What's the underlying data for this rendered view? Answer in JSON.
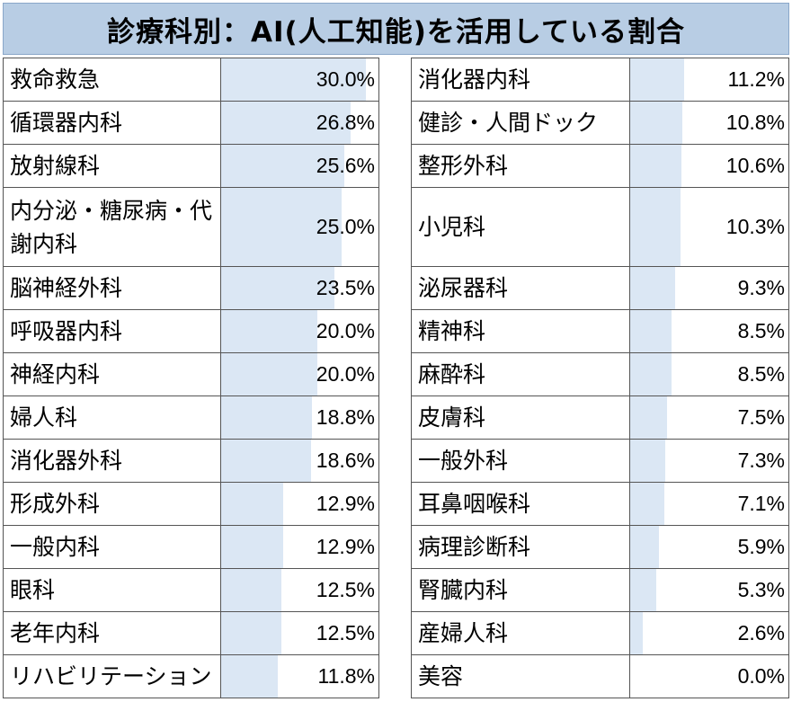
{
  "chart_data": {
    "type": "table",
    "title": "診療科別：AI(人工知能)を活用している割合",
    "xlim": [
      0,
      30
    ],
    "bar_color": "#dbe7f4",
    "header_color": "#b8cde4",
    "left": [
      {
        "label": "救命救急",
        "value": 30.0,
        "display": "30.0%"
      },
      {
        "label": "循環器内科",
        "value": 26.8,
        "display": "26.8%"
      },
      {
        "label": "放射線科",
        "value": 25.6,
        "display": "25.6%"
      },
      {
        "label": "内分泌・糖尿病・代謝内科",
        "value": 25.0,
        "display": "25.0%"
      },
      {
        "label": "脳神経外科",
        "value": 23.5,
        "display": "23.5%"
      },
      {
        "label": "呼吸器内科",
        "value": 20.0,
        "display": "20.0%"
      },
      {
        "label": "神経内科",
        "value": 20.0,
        "display": "20.0%"
      },
      {
        "label": "婦人科",
        "value": 18.8,
        "display": "18.8%"
      },
      {
        "label": "消化器外科",
        "value": 18.6,
        "display": "18.6%"
      },
      {
        "label": "形成外科",
        "value": 12.9,
        "display": "12.9%"
      },
      {
        "label": "一般内科",
        "value": 12.9,
        "display": "12.9%"
      },
      {
        "label": "眼科",
        "value": 12.5,
        "display": "12.5%"
      },
      {
        "label": "老年内科",
        "value": 12.5,
        "display": "12.5%"
      },
      {
        "label": "リハビリテーション",
        "value": 11.8,
        "display": "11.8%"
      }
    ],
    "right": [
      {
        "label": "消化器内科",
        "value": 11.2,
        "display": "11.2%"
      },
      {
        "label": "健診・人間ドック",
        "value": 10.8,
        "display": "10.8%"
      },
      {
        "label": "整形外科",
        "value": 10.6,
        "display": "10.6%"
      },
      {
        "label": "小児科",
        "value": 10.3,
        "display": "10.3%"
      },
      {
        "label": "泌尿器科",
        "value": 9.3,
        "display": "9.3%"
      },
      {
        "label": "精神科",
        "value": 8.5,
        "display": "8.5%"
      },
      {
        "label": "麻酔科",
        "value": 8.5,
        "display": "8.5%"
      },
      {
        "label": "皮膚科",
        "value": 7.5,
        "display": "7.5%"
      },
      {
        "label": "一般外科",
        "value": 7.3,
        "display": "7.3%"
      },
      {
        "label": "耳鼻咽喉科",
        "value": 7.1,
        "display": "7.1%"
      },
      {
        "label": "病理診断科",
        "value": 5.9,
        "display": "5.9%"
      },
      {
        "label": "腎臓内科",
        "value": 5.3,
        "display": "5.3%"
      },
      {
        "label": "産婦人科",
        "value": 2.6,
        "display": "2.6%"
      },
      {
        "label": "美容",
        "value": 0.0,
        "display": "0.0%"
      }
    ]
  }
}
